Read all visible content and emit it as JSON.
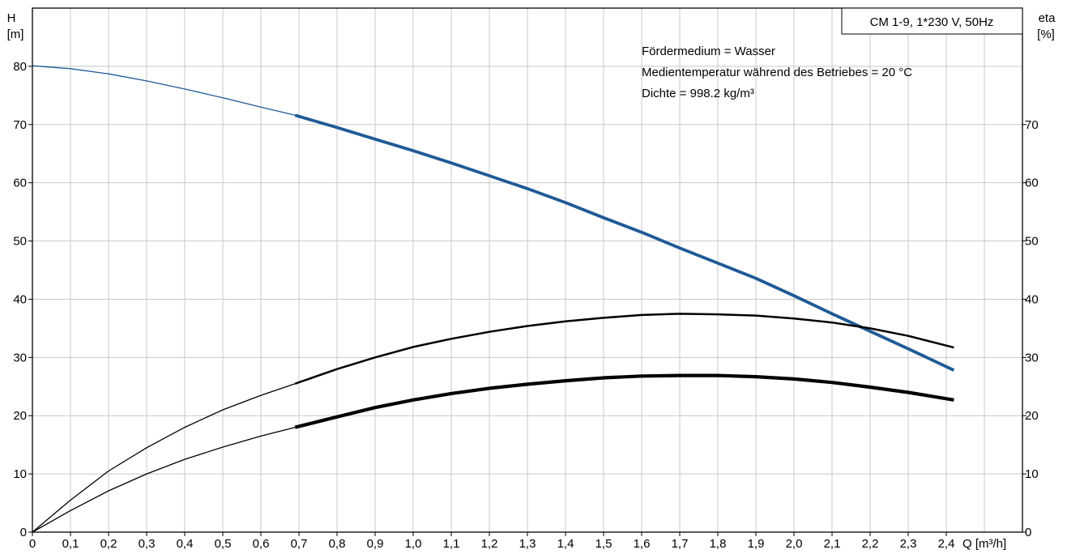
{
  "chart_data": {
    "type": "line",
    "title": "CM 1-9, 1*230 V, 50Hz",
    "annotations": [
      "Fördermedium = Wasser",
      "Medientemperatur während des Betriebes = 20 °C",
      "Dichte = 998.2 kg/m³"
    ],
    "xlabel": "Q [m³/h]",
    "ylabel_left": {
      "top": "H",
      "bottom": "[m]"
    },
    "ylabel_right": {
      "top": "eta",
      "bottom": "[%]"
    },
    "xlim": [
      0,
      2.6
    ],
    "ylim_left": [
      0,
      90
    ],
    "ylim_right": [
      0,
      90
    ],
    "x_ticks": [
      0,
      0.1,
      0.2,
      0.3,
      0.4,
      0.5,
      0.6,
      0.7,
      0.8,
      0.9,
      1.0,
      1.1,
      1.2,
      1.3,
      1.4,
      1.5,
      1.6,
      1.7,
      1.8,
      1.9,
      2.0,
      2.1,
      2.2,
      2.3,
      2.4
    ],
    "x_tick_labels": [
      "0",
      "0,1",
      "0,2",
      "0,3",
      "0,4",
      "0,5",
      "0,6",
      "0,7",
      "0,8",
      "0,9",
      "1,0",
      "1,1",
      "1,2",
      "1,3",
      "1,4",
      "1,5",
      "1,6",
      "1,7",
      "1,8",
      "1,9",
      "2,0",
      "2,1",
      "2,2",
      "2,3",
      "2,4"
    ],
    "y_left_ticks": [
      0,
      10,
      20,
      30,
      40,
      50,
      60,
      70,
      80
    ],
    "y_right_ticks": [
      0,
      10,
      20,
      30,
      40,
      50,
      60,
      70
    ],
    "grid": true,
    "operating_range_start_x": 0.69,
    "series": [
      {
        "axis": "left",
        "color": "#1f5a96",
        "x": [
          0,
          0.1,
          0.2,
          0.3,
          0.4,
          0.5,
          0.6,
          0.69,
          0.8,
          0.9,
          1.0,
          1.1,
          1.2,
          1.3,
          1.4,
          1.5,
          1.6,
          1.7,
          1.8,
          1.9,
          2.0,
          2.1,
          2.2,
          2.3,
          2.42
        ],
        "values": [
          80.1,
          79.6,
          78.7,
          77.5,
          76.1,
          74.6,
          73.0,
          71.6,
          69.5,
          67.5,
          65.5,
          63.4,
          61.2,
          59.0,
          56.6,
          54.0,
          51.5,
          48.8,
          46.2,
          43.6,
          40.6,
          37.5,
          34.5,
          31.5,
          27.8
        ]
      },
      {
        "axis": "right",
        "color": "#000000",
        "x": [
          0,
          0.1,
          0.2,
          0.3,
          0.4,
          0.5,
          0.6,
          0.69,
          0.8,
          0.9,
          1.0,
          1.1,
          1.2,
          1.3,
          1.4,
          1.5,
          1.6,
          1.7,
          1.8,
          1.9,
          2.0,
          2.1,
          2.2,
          2.3,
          2.42
        ],
        "values": [
          0,
          5.5,
          10.5,
          14.5,
          18.0,
          21.0,
          23.5,
          25.5,
          28.0,
          30.0,
          31.8,
          33.2,
          34.4,
          35.4,
          36.2,
          36.8,
          37.3,
          37.5,
          37.4,
          37.2,
          36.7,
          36.0,
          35.0,
          33.7,
          31.7
        ]
      },
      {
        "axis": "right",
        "color": "#000000",
        "x": [
          0,
          0.1,
          0.2,
          0.3,
          0.4,
          0.5,
          0.6,
          0.69,
          0.8,
          0.9,
          1.0,
          1.1,
          1.2,
          1.3,
          1.4,
          1.5,
          1.6,
          1.7,
          1.8,
          1.9,
          2.0,
          2.1,
          2.2,
          2.3,
          2.42
        ],
        "values": [
          0,
          3.7,
          7.1,
          10.0,
          12.5,
          14.6,
          16.5,
          18.0,
          19.8,
          21.4,
          22.7,
          23.8,
          24.7,
          25.4,
          26.0,
          26.5,
          26.8,
          26.9,
          26.9,
          26.7,
          26.3,
          25.7,
          24.9,
          24.0,
          22.7
        ]
      }
    ]
  }
}
